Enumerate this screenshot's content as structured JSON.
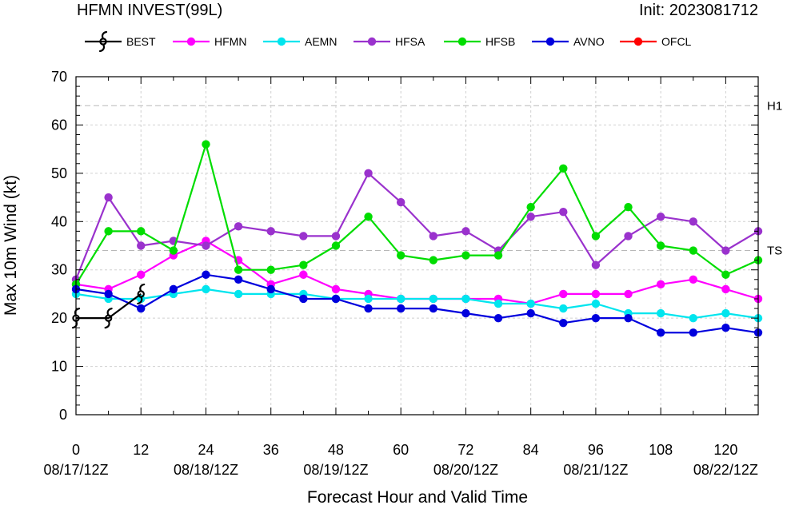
{
  "chart_data": {
    "type": "line",
    "title": "HFMN INVEST(99L)",
    "subtitle": "Init: 2023081712",
    "xlabel": "Forecast Hour and Valid Time",
    "ylabel": "Max 10m Wind (kt)",
    "xlim": [
      0,
      126
    ],
    "ylim": [
      0,
      70
    ],
    "x_ticks": [
      0,
      12,
      24,
      36,
      48,
      60,
      72,
      84,
      96,
      108,
      120
    ],
    "y_ticks": [
      0,
      10,
      20,
      30,
      40,
      50,
      60,
      70
    ],
    "valid_time_labels": [
      {
        "x": 0,
        "label": "08/17/12Z"
      },
      {
        "x": 24,
        "label": "08/18/12Z"
      },
      {
        "x": 48,
        "label": "08/19/12Z"
      },
      {
        "x": 72,
        "label": "08/20/12Z"
      },
      {
        "x": 96,
        "label": "08/21/12Z"
      },
      {
        "x": 120,
        "label": "08/22/12Z"
      }
    ],
    "reference_lines": [
      {
        "label": "H1",
        "y": 64
      },
      {
        "label": "TS",
        "y": 34
      }
    ],
    "grid": true,
    "legend_position": "top",
    "series": [
      {
        "name": "BEST",
        "color": "#000000",
        "marker": "hurricane-symbol",
        "x": [
          0,
          6,
          12
        ],
        "values": [
          20,
          20,
          25
        ]
      },
      {
        "name": "HFMN",
        "color": "#ff00ff",
        "x": [
          0,
          6,
          12,
          18,
          24,
          30,
          36,
          42,
          48,
          54,
          60,
          66,
          72,
          78,
          84,
          90,
          96,
          102,
          108,
          114,
          120,
          126
        ],
        "values": [
          27,
          26,
          29,
          33,
          36,
          32,
          27,
          29,
          26,
          25,
          24,
          24,
          24,
          24,
          23,
          25,
          25,
          25,
          27,
          28,
          26,
          24
        ]
      },
      {
        "name": "AEMN",
        "color": "#00e5ee",
        "x": [
          0,
          6,
          12,
          18,
          24,
          30,
          36,
          42,
          48,
          54,
          60,
          66,
          72,
          78,
          84,
          90,
          96,
          102,
          108,
          114,
          120,
          126
        ],
        "values": [
          25,
          24,
          24,
          25,
          26,
          25,
          25,
          25,
          24,
          24,
          24,
          24,
          24,
          23,
          23,
          22,
          23,
          21,
          21,
          20,
          21,
          20
        ]
      },
      {
        "name": "HFSA",
        "color": "#9a32cd",
        "x": [
          0,
          6,
          12,
          18,
          24,
          30,
          36,
          42,
          48,
          54,
          60,
          66,
          72,
          78,
          84,
          90,
          96,
          102,
          108,
          114,
          120,
          126
        ],
        "values": [
          28,
          45,
          35,
          36,
          35,
          39,
          38,
          37,
          37,
          50,
          44,
          37,
          38,
          34,
          41,
          42,
          31,
          37,
          41,
          40,
          34,
          38
        ]
      },
      {
        "name": "HFSB",
        "color": "#00dd00",
        "x": [
          0,
          6,
          12,
          18,
          24,
          30,
          36,
          42,
          48,
          54,
          60,
          66,
          72,
          78,
          84,
          90,
          96,
          102,
          108,
          114,
          120,
          126
        ],
        "values": [
          27,
          38,
          38,
          34,
          56,
          30,
          30,
          31,
          35,
          41,
          33,
          32,
          33,
          33,
          43,
          51,
          37,
          43,
          35,
          34,
          29,
          32
        ]
      },
      {
        "name": "AVNO",
        "color": "#0000dd",
        "x": [
          0,
          6,
          12,
          18,
          24,
          30,
          36,
          42,
          48,
          54,
          60,
          66,
          72,
          78,
          84,
          90,
          96,
          102,
          108,
          114,
          120,
          126
        ],
        "values": [
          26,
          25,
          22,
          26,
          29,
          28,
          26,
          24,
          24,
          22,
          22,
          22,
          21,
          20,
          21,
          19,
          20,
          20,
          17,
          17,
          18,
          17
        ]
      },
      {
        "name": "OFCL",
        "color": "#ff0000",
        "x": [],
        "values": []
      }
    ]
  }
}
